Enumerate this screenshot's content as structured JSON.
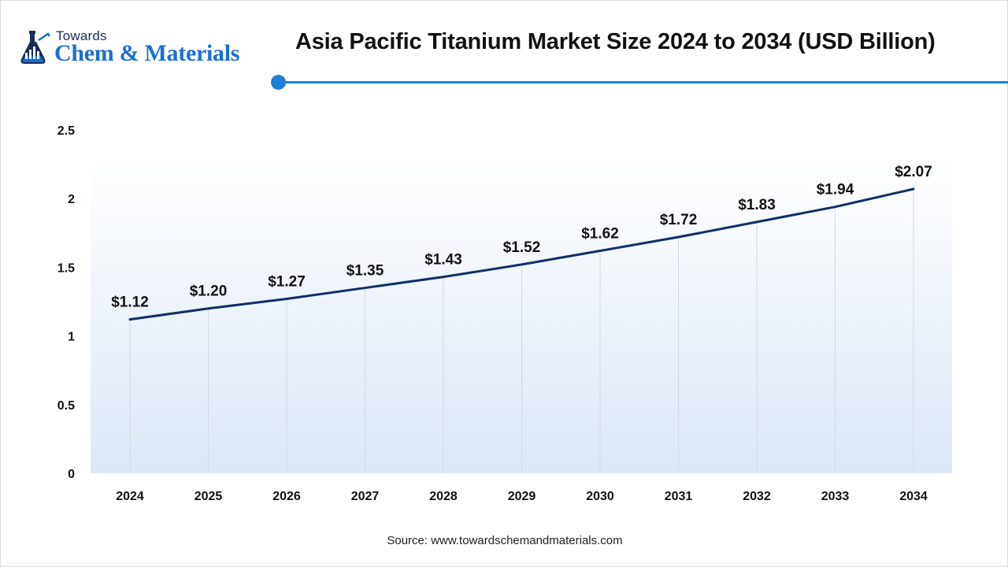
{
  "header": {
    "logo_top": "Towards",
    "logo_name": "Chem & Materials",
    "title": "Asia Pacific Titanium Market Size 2024 to 2034 (USD Billion)"
  },
  "source": "Source: www.towardschemandmaterials.com",
  "colors": {
    "line": "#0f2f6b",
    "accent": "#1d7fd6",
    "area_top": "#ffffff",
    "area_bottom": "#dde8f7"
  },
  "chart_data": {
    "type": "line",
    "title": "Asia Pacific Titanium Market Size 2024 to 2034 (USD Billion)",
    "xlabel": "",
    "ylabel": "",
    "categories": [
      "2024",
      "2025",
      "2026",
      "2027",
      "2028",
      "2029",
      "2030",
      "2031",
      "2032",
      "2033",
      "2034"
    ],
    "series": [
      {
        "values": [
          1.12,
          1.2,
          1.27,
          1.35,
          1.43,
          1.52,
          1.62,
          1.72,
          1.83,
          1.94,
          2.07
        ],
        "labels": [
          "$1.12",
          "$1.20",
          "$1.27",
          "$1.35",
          "$1.43",
          "$1.52",
          "$1.62",
          "$1.72",
          "$1.83",
          "$1.94",
          "$2.07"
        ]
      }
    ],
    "ylim": [
      0,
      2.5
    ],
    "yticks": [
      "0",
      "0.5",
      "1",
      "1.5",
      "2",
      "2.5"
    ],
    "grid": "vertical",
    "legend": "none"
  }
}
